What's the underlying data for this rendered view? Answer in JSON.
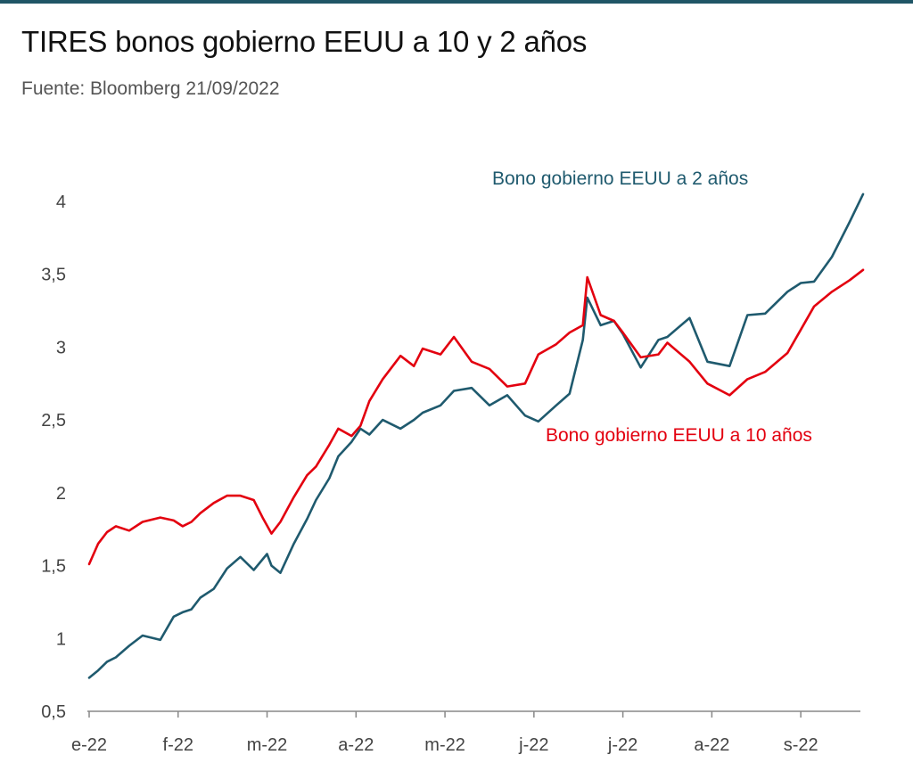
{
  "chart_data": {
    "type": "line",
    "title": "TIRES bonos gobierno EEUU a 10 y 2 años",
    "subtitle": "Fuente: Bloomberg 21/09/2022",
    "xlabel": "",
    "ylabel": "",
    "ylim": [
      0.5,
      4.0
    ],
    "y_ticks": [
      "0,5",
      "1",
      "1,5",
      "2",
      "2,5",
      "3",
      "3,5",
      "4"
    ],
    "x_ticks": [
      "e-22",
      "f-22",
      "m-22",
      "a-22",
      "m-22",
      "j-22",
      "j-22",
      "a-22",
      "s-22"
    ],
    "grid": false,
    "legend": "inline-labels",
    "colors": {
      "us2y": "#1f5a6e",
      "us10y": "#e3000f"
    },
    "series": [
      {
        "name": "Bono gobierno EEUU a 2 años",
        "key": "us2y",
        "x": [
          0,
          0.1,
          0.2,
          0.3,
          0.45,
          0.6,
          0.8,
          0.95,
          1.05,
          1.15,
          1.25,
          1.4,
          1.55,
          1.7,
          1.85,
          2,
          2.05,
          2.15,
          2.3,
          2.45,
          2.55,
          2.7,
          2.8,
          2.95,
          3.05,
          3.15,
          3.3,
          3.5,
          3.65,
          3.75,
          3.95,
          4.1,
          4.3,
          4.5,
          4.7,
          4.9,
          5.05,
          5.25,
          5.4,
          5.55,
          5.6,
          5.75,
          5.9,
          6,
          6.2,
          6.4,
          6.5,
          6.75,
          6.95,
          7.2,
          7.4,
          7.6,
          7.85,
          8,
          8.15,
          8.35,
          8.55,
          8.7
        ],
        "values": [
          0.73,
          0.78,
          0.84,
          0.87,
          0.95,
          1.02,
          0.99,
          1.15,
          1.18,
          1.2,
          1.28,
          1.34,
          1.48,
          1.56,
          1.47,
          1.58,
          1.5,
          1.45,
          1.65,
          1.82,
          1.95,
          2.1,
          2.25,
          2.35,
          2.44,
          2.4,
          2.5,
          2.44,
          2.5,
          2.55,
          2.6,
          2.7,
          2.72,
          2.6,
          2.67,
          2.53,
          2.49,
          2.6,
          2.68,
          3.05,
          3.34,
          3.15,
          3.18,
          3.09,
          2.86,
          3.05,
          3.07,
          3.2,
          2.9,
          2.87,
          3.22,
          3.23,
          3.38,
          3.44,
          3.45,
          3.62,
          3.86,
          4.05
        ]
      },
      {
        "name": "Bono gobierno EEUU a 10 años",
        "key": "us10y",
        "x": [
          0,
          0.1,
          0.2,
          0.3,
          0.45,
          0.6,
          0.8,
          0.95,
          1.05,
          1.15,
          1.25,
          1.4,
          1.55,
          1.7,
          1.85,
          1.95,
          2.05,
          2.15,
          2.3,
          2.45,
          2.55,
          2.7,
          2.8,
          2.95,
          3.05,
          3.15,
          3.3,
          3.5,
          3.65,
          3.75,
          3.95,
          4.1,
          4.3,
          4.5,
          4.7,
          4.9,
          5.05,
          5.25,
          5.4,
          5.55,
          5.6,
          5.75,
          5.9,
          6,
          6.2,
          6.4,
          6.5,
          6.75,
          6.95,
          7.2,
          7.4,
          7.6,
          7.85,
          8,
          8.15,
          8.35,
          8.55,
          8.7
        ],
        "values": [
          1.51,
          1.65,
          1.73,
          1.77,
          1.74,
          1.8,
          1.83,
          1.81,
          1.77,
          1.8,
          1.86,
          1.93,
          1.98,
          1.98,
          1.95,
          1.83,
          1.72,
          1.8,
          1.97,
          2.12,
          2.18,
          2.33,
          2.44,
          2.39,
          2.46,
          2.63,
          2.78,
          2.94,
          2.87,
          2.99,
          2.95,
          3.07,
          2.9,
          2.85,
          2.73,
          2.75,
          2.95,
          3.02,
          3.1,
          3.15,
          3.48,
          3.22,
          3.18,
          3.1,
          2.93,
          2.95,
          3.03,
          2.9,
          2.75,
          2.67,
          2.78,
          2.83,
          2.96,
          3.12,
          3.28,
          3.38,
          3.46,
          3.53
        ]
      }
    ]
  }
}
